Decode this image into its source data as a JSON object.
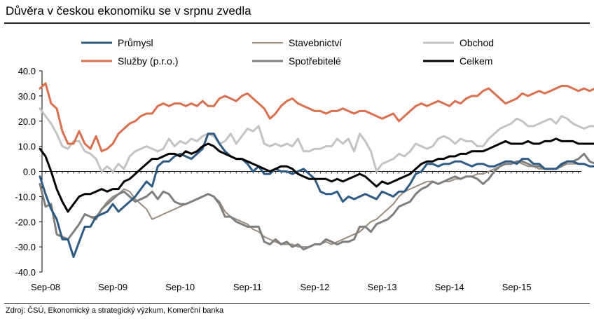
{
  "title": "Důvěra v českou ekonomiku se v srpnu zvedla",
  "source": "Zdroj: ČSÚ, Ekonomický a strategický výzkum, Komerční banka",
  "chart_data": {
    "type": "line",
    "title": "Důvěra v českou ekonomiku se v srpnu zvedla",
    "ylim": [
      -40,
      40
    ],
    "yticks": [
      "40.0",
      "30.0",
      "20.0",
      "10.0",
      "0.0",
      "-10.0",
      "-20.0",
      "-30.0",
      "-40.0"
    ],
    "xticks": [
      "Sep-08",
      "Sep-09",
      "Sep-10",
      "Sep-11",
      "Sep-12",
      "Sep-13",
      "Sep-14",
      "Sep-15"
    ],
    "x_start": "2008-08",
    "grid": false,
    "legend_position": "top",
    "series": [
      {
        "name": "Průmysl",
        "color": "#2f5b82",
        "width": 3,
        "values": [
          -2,
          -9,
          -15,
          -19,
          -27,
          -27,
          -34,
          -28,
          -22,
          -22,
          -18,
          -17,
          -16,
          -13,
          -16,
          -14,
          -12,
          -10,
          -7,
          -4,
          -6,
          2,
          4,
          4,
          6,
          7,
          6,
          5,
          7,
          9,
          15,
          15,
          11,
          8,
          6,
          5,
          5,
          3,
          0,
          2,
          -1,
          -1,
          1,
          0,
          0,
          -1,
          0,
          1,
          -1,
          -3,
          -8,
          -9,
          -9,
          -8,
          -12,
          -10,
          -11,
          -10,
          -9,
          -10,
          -11,
          -8,
          -9,
          -10,
          -8,
          -8,
          -5,
          -1,
          0,
          3,
          3,
          2,
          3,
          3,
          4,
          4,
          3,
          2,
          3,
          3,
          2,
          2,
          3,
          4,
          4,
          3,
          5,
          5,
          3,
          3,
          1,
          1,
          1,
          3,
          4,
          4,
          3,
          3,
          2,
          2,
          1,
          3,
          5
        ]
      },
      {
        "name": "Stavebnictví",
        "color": "#9a8b7c",
        "width": 2,
        "values": [
          -5,
          -14,
          -13,
          -25,
          -26,
          -27,
          -24,
          -21,
          -17,
          -18,
          -18,
          -15,
          -12,
          -10,
          -9,
          -7,
          -8,
          -11,
          -13,
          -15,
          -19,
          -18,
          -17,
          -16,
          -15,
          -14,
          -13,
          -12,
          -11,
          -10,
          -9,
          -10,
          -12,
          -16,
          -18,
          -19,
          -20,
          -21,
          -23,
          -24,
          -26,
          -27,
          -28,
          -29,
          -29,
          -29,
          -30,
          -30,
          -30,
          -29,
          -29,
          -28,
          -29,
          -28,
          -27,
          -26,
          -25,
          -24,
          -22,
          -20,
          -19,
          -17,
          -15,
          -13,
          -10,
          -8,
          -7,
          -6,
          -5,
          -4,
          -4,
          -5,
          -4,
          -4,
          -3,
          -3,
          -2,
          -2,
          -1,
          -1,
          0,
          1,
          2,
          3,
          3,
          4,
          3,
          2,
          2,
          1,
          1,
          1,
          1,
          2,
          3,
          3,
          3,
          3,
          2,
          2,
          2,
          1,
          2
        ]
      },
      {
        "name": "Obchod",
        "color": "#c4c4c4",
        "width": 3,
        "values": [
          25,
          22,
          19,
          15,
          10,
          9,
          12,
          12,
          8,
          7,
          5,
          0,
          2,
          0,
          3,
          1,
          6,
          8,
          9,
          10,
          9,
          8,
          9,
          13,
          10,
          12,
          11,
          13,
          12,
          14,
          15,
          14,
          11,
          12,
          15,
          11,
          14,
          17,
          16,
          18,
          11,
          10,
          11,
          10,
          11,
          10,
          13,
          8,
          8,
          9,
          9,
          10,
          10,
          13,
          11,
          13,
          8,
          15,
          12,
          8,
          0,
          3,
          4,
          5,
          7,
          6,
          8,
          11,
          10,
          9,
          10,
          13,
          14,
          13,
          11,
          13,
          12,
          12,
          10,
          10,
          13,
          15,
          17,
          18,
          19,
          21,
          20,
          18,
          18,
          19,
          20,
          21,
          19,
          22,
          21,
          19,
          18,
          17,
          18,
          18,
          17,
          17,
          18
        ]
      },
      {
        "name": "Služby (p.r.o.)",
        "color": "#d9704f",
        "width": 3,
        "values": [
          33,
          35,
          27,
          25,
          16,
          11,
          11,
          16,
          11,
          9,
          14,
          8,
          9,
          11,
          15,
          17,
          19,
          20,
          22,
          23,
          23,
          26,
          27,
          26,
          27,
          27,
          26,
          27,
          26,
          28,
          26,
          26,
          29,
          30,
          29,
          28,
          30,
          31,
          29,
          27,
          25,
          21,
          23,
          26,
          28,
          29,
          27,
          26,
          25,
          24,
          24,
          23,
          24,
          24,
          25,
          24,
          23,
          24,
          24,
          23,
          22,
          21,
          22,
          23,
          20,
          22,
          24,
          26,
          27,
          26,
          27,
          28,
          27,
          26,
          28,
          27,
          29,
          30,
          30,
          32,
          33,
          31,
          29,
          27,
          28,
          29,
          31,
          30,
          31,
          32,
          31,
          32,
          33,
          34,
          34,
          33,
          32,
          33,
          32,
          33,
          33,
          32,
          33
        ]
      },
      {
        "name": "Spotřebitelé",
        "color": "#7f7f7f",
        "width": 3,
        "values": [
          -5,
          -14,
          -13,
          -25,
          -26,
          -27,
          -24,
          -21,
          -17,
          -18,
          -19,
          -15,
          -13,
          -11,
          -9,
          -8,
          -10,
          -12,
          -11,
          -10,
          -8,
          -11,
          -8,
          -9,
          -12,
          -13,
          -13,
          -12,
          -11,
          -10,
          -9,
          -10,
          -13,
          -18,
          -18,
          -20,
          -21,
          -22,
          -22,
          -22,
          -28,
          -29,
          -27,
          -29,
          -28,
          -30,
          -29,
          -31,
          -30,
          -29,
          -29,
          -27,
          -28,
          -29,
          -28,
          -28,
          -27,
          -22,
          -22,
          -24,
          -21,
          -20,
          -19,
          -17,
          -14,
          -13,
          -12,
          -9,
          -7,
          -6,
          -4,
          -5,
          -4,
          -3,
          -2,
          -3,
          -2,
          -2,
          -3,
          -5,
          -3,
          0,
          2,
          3,
          3,
          4,
          4,
          3,
          2,
          2,
          1,
          1,
          1,
          2,
          4,
          4,
          5,
          7,
          4,
          3,
          2,
          1,
          3
        ]
      },
      {
        "name": "Celkem",
        "color": "#000000",
        "width": 3,
        "values": [
          9,
          6,
          0,
          -7,
          -12,
          -16,
          -13,
          -10,
          -9,
          -9,
          -8,
          -7,
          -8,
          -7,
          -7,
          -4,
          -3,
          -1,
          1,
          3,
          5,
          5,
          6,
          7,
          7,
          6,
          8,
          7,
          8,
          10,
          11,
          10,
          8,
          7,
          6,
          5,
          5,
          4,
          3,
          2,
          1,
          0,
          1,
          2,
          2,
          1,
          -1,
          -2,
          -3,
          -3,
          -3,
          -3,
          -4,
          -3,
          -4,
          -3,
          -2,
          -1,
          -2,
          -4,
          -6,
          -4,
          -5,
          -4,
          -3,
          -2,
          -1,
          1,
          3,
          4,
          4,
          5,
          5,
          6,
          6,
          7,
          7,
          8,
          8,
          8,
          9,
          10,
          11,
          12,
          11,
          11,
          11,
          12,
          11,
          11,
          12,
          12,
          13,
          12,
          12,
          12,
          11,
          11,
          11,
          11,
          11,
          11,
          11
        ]
      }
    ],
    "legend_order": [
      "Průmysl",
      "Stavebnictví",
      "Obchod",
      "Služby (p.r.o.)",
      "Spotřebitelé",
      "Celkem"
    ]
  }
}
